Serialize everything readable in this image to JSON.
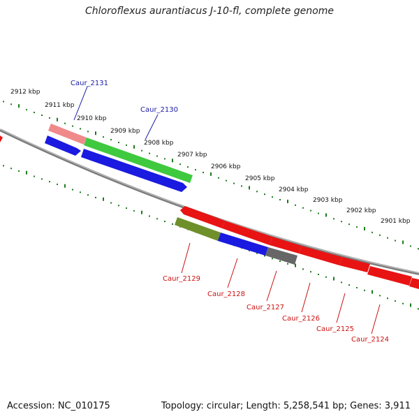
{
  "title": "Chloroflexus aurantiacus J-10-fl, complete genome",
  "accession": "Accession: NC_010175",
  "summary": "Topology: circular; Length: 5,258,541 bp; Genes: 3,911",
  "colors": {
    "backbone": "#8a8a8a",
    "tick": "#1e7a1e",
    "label_forward": "#1a1aa8",
    "label_reverse": "#cc1111"
  },
  "ticks": [
    {
      "label": "2912 kbp"
    },
    {
      "label": "2911 kbp"
    },
    {
      "label": "2910 kbp"
    },
    {
      "label": "2909 kbp"
    },
    {
      "label": "2908 kbp"
    },
    {
      "label": "2907 kbp"
    },
    {
      "label": "2906 kbp"
    },
    {
      "label": "2905 kbp"
    },
    {
      "label": "2904 kbp"
    },
    {
      "label": "2903 kbp"
    },
    {
      "label": "2902 kbp"
    },
    {
      "label": "2901 kbp"
    }
  ],
  "genes": [
    {
      "label": "Caur_2131",
      "strand": "forward",
      "color": "#f08a8a"
    },
    {
      "label": "Caur_2130",
      "strand": "forward",
      "color": "#3fc93f"
    },
    {
      "label": "Caur_2129",
      "strand": "reverse",
      "color": "#6f8f2a"
    },
    {
      "label": "Caur_2128",
      "strand": "reverse",
      "color": "#1a1ae0"
    },
    {
      "label": "Caur_2127",
      "strand": "reverse",
      "color": "#666666"
    },
    {
      "label": "Caur_2126",
      "strand": "reverse",
      "color": "#e81414"
    },
    {
      "label": "Caur_2125",
      "strand": "reverse",
      "color": "#e81414"
    },
    {
      "label": "Caur_2124",
      "strand": "reverse",
      "color": "#e81414"
    }
  ]
}
